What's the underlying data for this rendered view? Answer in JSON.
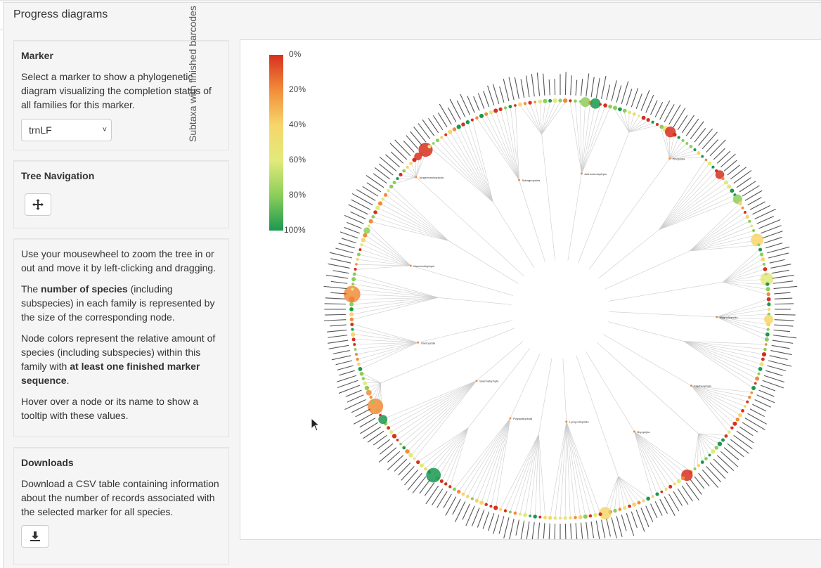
{
  "header": {
    "title": "Progress diagrams"
  },
  "marker_panel": {
    "heading": "Marker",
    "description": "Select a marker to show a phylogenetic diagram visualizing the completion status of all families for this marker.",
    "selected_marker": "trnLF"
  },
  "navigation_panel": {
    "heading": "Tree Navigation",
    "reset_icon": "move-arrows-icon"
  },
  "help_panel": {
    "line1": "Use your mousewheel to zoom the tree in or out and move it by left-clicking and dragging.",
    "line2_pre": "The ",
    "line2_bold": "number of species",
    "line2_post": " (including subspecies) in each family is represented by the size of the corresponding node.",
    "line3_pre": "Node colors represent the relative amount of species (including subspecies) within this family with ",
    "line3_bold": "at least one finished marker sequence",
    "line3_post": ".",
    "line4": "Hover over a node or its name to show a tooltip with these values."
  },
  "downloads_panel": {
    "heading": "Downloads",
    "description": "Download a CSV table containing information about the number of records associated with the selected marker for all species.",
    "download_icon": "download-icon"
  },
  "legend": {
    "title": "Subtaxa with finished barcodes",
    "ticks": [
      "0%",
      "20%",
      "40%",
      "60%",
      "80%",
      "100%"
    ],
    "colors": [
      "#d7301f",
      "#f28c3a",
      "#f6d66b",
      "#e2ea7a",
      "#8cce5a",
      "#1a9850"
    ]
  },
  "tree": {
    "inner_labels": [
      "Magnoliopsida",
      "Tracheophyta",
      "Bryophyta",
      "Lycopodiopsida",
      "Polypodiopsida",
      "Spermatophyta",
      "Gnetopsida",
      "Marchantiophyta",
      "Jungermanniopsida",
      "Sphagnopsida",
      "Anthocerotophyta",
      "Pinopsida"
    ]
  }
}
